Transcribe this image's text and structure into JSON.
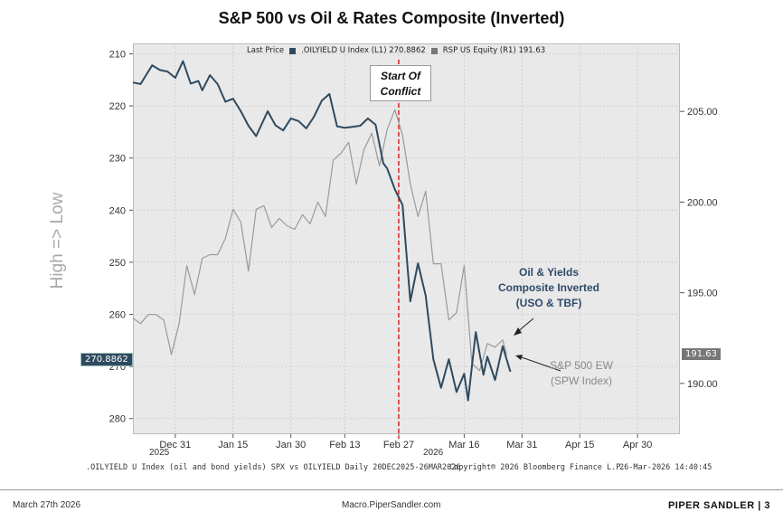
{
  "title": "S&P 500 vs Oil & Rates Composite (Inverted)",
  "legend": {
    "prefix": "Last Price",
    "item1": ".OILYIELD U Index  (L1) 270.8862",
    "item2": "RSP US Equity  (R1) 191.63",
    "color1": "#2f4a5f",
    "color2": "#777777"
  },
  "y_axis_label": "High => Low",
  "annotations": {
    "start_line1": "Start Of",
    "start_line2": "Conflict",
    "oil_line1": "Oil & Yields",
    "oil_line2": "Composite Inverted",
    "oil_line3": "(USO & TBF)",
    "spx_line1": "S&P 500 EW",
    "spx_line2": "(SPW Index)",
    "last_left": "270.8862",
    "last_right": "191.63"
  },
  "x_year_labels": {
    "y2025": "2025",
    "y2026": "2026"
  },
  "footer": {
    "source_left": ".OILYIELD U Index (oil and bond yields) SPX vs OILYIELD Daily 20DEC2025-26MAR2026",
    "copyright": "Copyright® 2026 Bloomberg Finance L.P.",
    "timestamp": "26-Mar-2026 14:40:45"
  },
  "page_footer": {
    "date": "March 27th 2026",
    "site": "Macro.PiperSandler.com",
    "brand": "PIPER SANDLER  |  3"
  },
  "chart_data": {
    "type": "line",
    "title": "S&P 500 vs Oil & Rates Composite (Inverted)",
    "ylabel": "High => Low",
    "left_axis": {
      "ticks": [
        210,
        220,
        230,
        240,
        250,
        260,
        270,
        280
      ],
      "range": [
        208,
        283
      ],
      "inverted": true
    },
    "right_axis": {
      "ticks": [
        "190.00",
        "195.00",
        "200.00",
        "205.00"
      ],
      "range": [
        187.2,
        208.75
      ]
    },
    "x_ticks": [
      "Dec 31",
      "Jan 15",
      "Jan 30",
      "Feb 13",
      "Feb 27",
      "Mar 16",
      "Mar 31",
      "Apr 15",
      "Apr 30"
    ],
    "x_tick_days": [
      11,
      26,
      41,
      55,
      69,
      86,
      101,
      116,
      131
    ],
    "x_range": [
      0,
      142
    ],
    "vline_day": 69,
    "grid": true,
    "series": [
      {
        "name": ".OILYIELD U Index",
        "axis": "left",
        "color": "#2f4a5f",
        "days": [
          0,
          2,
          5,
          7,
          9,
          11,
          13,
          15,
          17,
          18,
          20,
          22,
          24,
          26,
          28,
          30,
          32,
          35,
          37,
          39,
          41,
          43,
          45,
          47,
          49,
          51,
          53,
          55,
          57,
          59,
          61,
          63,
          65,
          66,
          68,
          70,
          72,
          74,
          76,
          78,
          80,
          82,
          84,
          86,
          87,
          89,
          91,
          92,
          94,
          96,
          97,
          98
        ],
        "values": [
          215.5,
          215.8,
          212.2,
          213.1,
          213.4,
          214.6,
          211.4,
          215.7,
          215.2,
          217.0,
          214.1,
          215.8,
          219.2,
          218.6,
          221.0,
          223.8,
          225.8,
          221.0,
          223.7,
          224.7,
          222.4,
          222.9,
          224.3,
          222.1,
          219.0,
          217.7,
          223.9,
          224.2,
          224.0,
          223.8,
          222.4,
          223.6,
          231.0,
          232.0,
          236.0,
          239.0,
          257.5,
          250.2,
          256.4,
          268.6,
          274.1,
          268.6,
          274.9,
          271.4,
          276.5,
          263.4,
          271.6,
          268.1,
          272.6,
          266.1,
          268.6,
          271.0
        ]
      },
      {
        "name": "RSP US Equity",
        "axis": "right",
        "color": "#9a9a9a",
        "days": [
          0,
          2,
          4,
          6,
          8,
          10,
          12,
          14,
          16,
          18,
          20,
          22,
          24,
          26,
          28,
          30,
          32,
          34,
          36,
          38,
          40,
          42,
          44,
          46,
          48,
          50,
          52,
          54,
          56,
          58,
          60,
          62,
          64,
          66,
          68,
          70,
          72,
          74,
          76,
          78,
          80,
          82,
          84,
          86,
          88,
          90,
          92,
          94,
          96,
          97
        ],
        "values": [
          193.6,
          193.3,
          193.8,
          193.8,
          193.5,
          191.6,
          193.3,
          196.5,
          194.9,
          196.9,
          197.1,
          197.1,
          198.0,
          199.6,
          198.9,
          196.2,
          199.6,
          199.8,
          198.6,
          199.1,
          198.7,
          198.5,
          199.3,
          198.8,
          200.0,
          199.2,
          202.3,
          202.7,
          203.3,
          201.0,
          202.9,
          203.8,
          202.0,
          204.0,
          205.1,
          203.7,
          201.0,
          199.2,
          200.6,
          196.6,
          196.6,
          193.5,
          193.9,
          196.5,
          191.1,
          190.7,
          192.2,
          192.0,
          192.4,
          191.6
        ]
      }
    ]
  }
}
